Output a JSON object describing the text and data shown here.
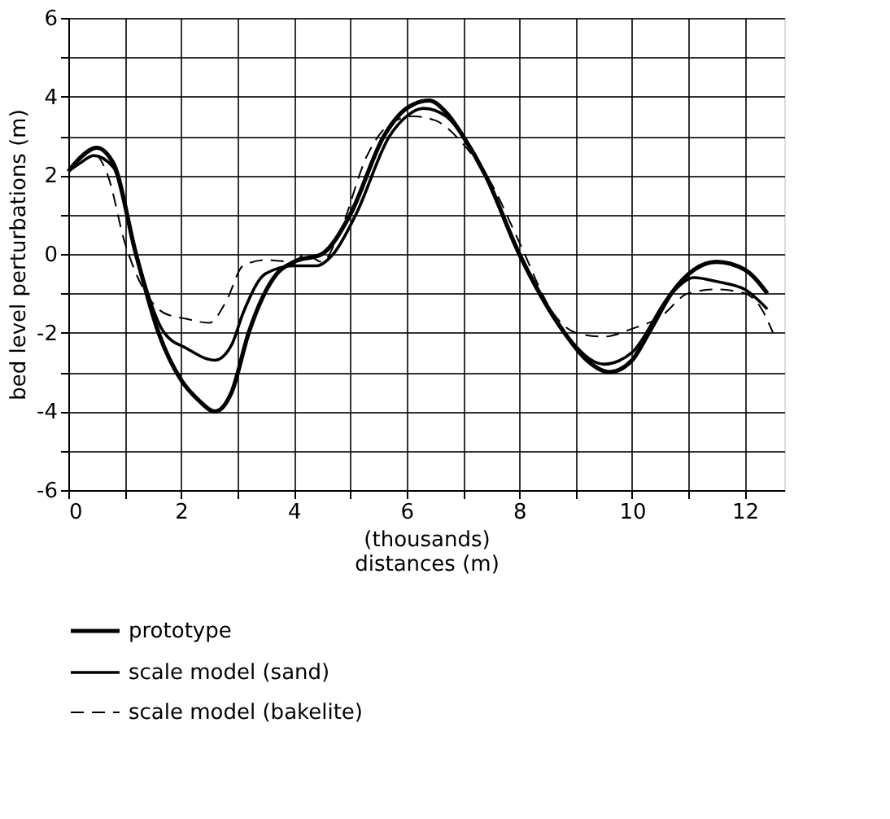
{
  "chart_data": {
    "type": "line",
    "xlabel": "(thousands)\ndistances (m)",
    "ylabel": "bed level perturbations (m)",
    "xlim": [
      0,
      12.7
    ],
    "ylim": [
      -6,
      6
    ],
    "xticks": [
      0,
      {
        "value": 1,
        "label": null
      },
      2,
      {
        "value": 3,
        "label": null
      },
      4,
      {
        "value": 5,
        "label": null
      },
      6,
      {
        "value": 7,
        "label": null
      },
      8,
      {
        "value": 9,
        "label": null
      },
      10,
      {
        "value": 11,
        "label": null
      },
      12
    ],
    "yticks": [
      -6,
      {
        "value": -5,
        "label": null
      },
      -4,
      {
        "value": -3,
        "label": null
      },
      -2,
      {
        "value": -1,
        "label": null
      },
      0,
      {
        "value": 1,
        "label": null
      },
      2,
      {
        "value": 3,
        "label": null
      },
      4,
      {
        "value": 5,
        "label": null
      },
      6
    ],
    "grid": true,
    "legend": "bottom",
    "series": [
      {
        "name": "prototype",
        "color": "#000000",
        "line_style": "solid",
        "x": [
          0,
          0.25,
          0.5,
          0.8,
          1.2,
          1.6,
          2.0,
          2.3,
          2.6,
          2.9,
          3.2,
          3.7,
          4.0,
          4.5,
          5.0,
          5.6,
          6.0,
          6.4,
          6.7,
          7.0,
          7.4,
          8.0,
          8.8,
          9.2,
          9.6,
          10.0,
          10.3,
          10.7,
          11.1,
          11.5,
          12.0,
          12.4
        ],
        "values": [
          2.1,
          2.5,
          2.7,
          2.3,
          0,
          -2,
          -3.2,
          -3.7,
          -4.0,
          -3.5,
          -2,
          -0.5,
          -0.2,
          0,
          1,
          3,
          3.7,
          3.9,
          3.6,
          3,
          2,
          0,
          -2,
          -2.7,
          -3.0,
          -2.7,
          -2,
          -1,
          -0.4,
          -0.2,
          -0.4,
          -1.0
        ]
      },
      {
        "name": "scale model (sand)",
        "color": "#000000",
        "line_style": "solid",
        "x": [
          0,
          0.2,
          0.45,
          0.8,
          1.2,
          1.7,
          2.1,
          2.6,
          2.9,
          3.1,
          3.5,
          4.0,
          4.4,
          4.7,
          5.1,
          5.7,
          6.0,
          6.3,
          6.7,
          7.0,
          7.4,
          8.0,
          8.8,
          9.5,
          10.0,
          10.7,
          11.1,
          11.5,
          12.0,
          12.4
        ],
        "values": [
          2.1,
          2.3,
          2.5,
          2.2,
          0,
          -2,
          -2.4,
          -2.7,
          -2.3,
          -1.5,
          -0.5,
          -0.3,
          -0.3,
          0,
          1,
          3,
          3.5,
          3.7,
          3.5,
          3,
          2,
          0,
          -2,
          -2.8,
          -2.5,
          -1,
          -0.6,
          -0.7,
          -0.9,
          -1.4
        ]
      },
      {
        "name": "scale model (bakelite)",
        "color": "#000000",
        "line_style": "dashed",
        "x": [
          0.2,
          0.4,
          0.7,
          1.0,
          1.3,
          1.7,
          2.1,
          2.5,
          2.8,
          3.1,
          3.5,
          4.0,
          4.2,
          4.5,
          4.8,
          5.3,
          5.7,
          6.1,
          6.5,
          7.0,
          7.5,
          8.0,
          8.6,
          9.0,
          9.5,
          10.0,
          10.5,
          11.0,
          11.5,
          12.0,
          12.3,
          12.5
        ],
        "values": [
          2.4,
          2.6,
          2.0,
          0.3,
          -0.8,
          -1.5,
          -1.65,
          -1.75,
          -1.2,
          -0.3,
          -0.15,
          -0.2,
          0,
          -0.2,
          0.5,
          2.5,
          3.3,
          3.5,
          3.4,
          2.8,
          1.8,
          0.3,
          -1.5,
          -2.0,
          -2.1,
          -1.9,
          -1.6,
          -1.0,
          -0.9,
          -1.0,
          -1.4,
          -2.0
        ]
      }
    ]
  }
}
